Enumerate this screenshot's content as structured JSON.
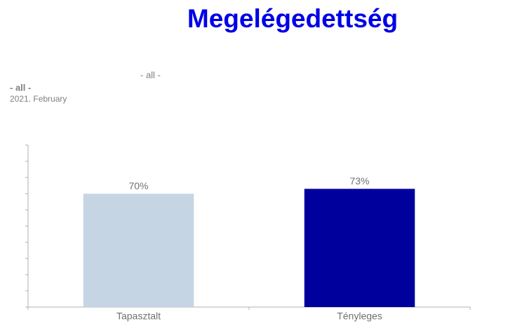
{
  "header": {
    "filter_value": "- all -",
    "selection": "- all -",
    "period": "2021. February"
  },
  "chart_data": {
    "type": "bar",
    "title": "Megelégedettség",
    "categories": [
      "Tapasztalt",
      "Tényleges"
    ],
    "values": [
      70,
      73
    ],
    "value_labels": [
      "70%",
      "73%"
    ],
    "colors": [
      "#c5d5e4",
      "#00009c"
    ],
    "ylim": [
      0,
      100
    ],
    "yticks": [
      0,
      10,
      20,
      30,
      40,
      50,
      60,
      70,
      80,
      90,
      100
    ],
    "ytick_labels": false
  }
}
